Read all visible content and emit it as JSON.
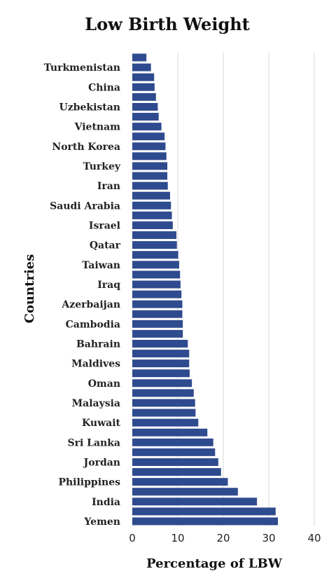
{
  "chart_data": {
    "type": "bar",
    "orientation": "horizontal",
    "title": "Low Birth Weight",
    "xlabel": "Percentage of LBW",
    "ylabel": "Countries",
    "xlim": [
      0,
      40
    ],
    "xticks": [
      0,
      10,
      20,
      30,
      40
    ],
    "grid": true,
    "bar_color": "#2f4b8f",
    "categories": [
      "Yemen",
      "",
      "India",
      "",
      "Philippines",
      "",
      "Jordan",
      "",
      "Sri Lanka",
      "",
      "Kuwait",
      "",
      "Malaysia",
      "",
      "Oman",
      "",
      "Maldives",
      "",
      "Bahrain",
      "",
      "Cambodia",
      "",
      "Azerbaijan",
      "",
      "Iraq",
      "",
      "Taiwan",
      "",
      "Qatar",
      "",
      "Israel",
      "",
      "Saudi Arabia",
      "",
      "Iran",
      "",
      "Turkey",
      "",
      "North Korea",
      "",
      "Vietnam",
      "",
      "Uzbekistan",
      "",
      "China",
      "",
      "Turkmenistan",
      ""
    ],
    "values": [
      32.0,
      31.5,
      27.4,
      23.2,
      21.0,
      19.5,
      18.9,
      18.2,
      17.8,
      16.5,
      14.5,
      13.9,
      13.8,
      13.5,
      13.1,
      12.6,
      12.5,
      12.5,
      12.2,
      11.1,
      11.1,
      11.0,
      11.0,
      10.8,
      10.6,
      10.5,
      10.3,
      10.1,
      9.8,
      9.7,
      8.9,
      8.7,
      8.5,
      8.3,
      7.8,
      7.7,
      7.7,
      7.5,
      7.3,
      7.1,
      6.4,
      5.8,
      5.6,
      5.2,
      4.9,
      4.8,
      4.1,
      3.1
    ]
  }
}
